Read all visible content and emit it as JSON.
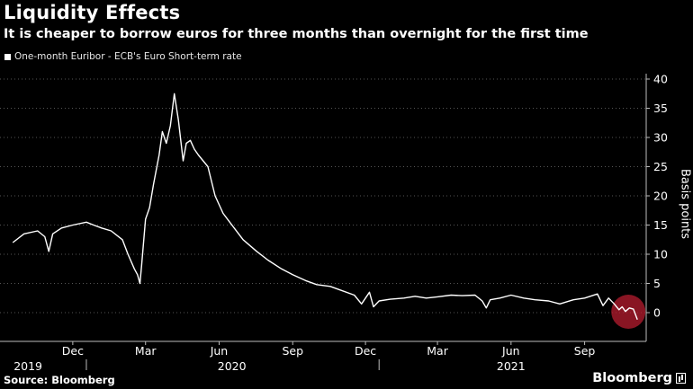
{
  "title": "Liquidity Effects",
  "subtitle": "It is cheaper to borrow euros for three months than overnight for the first time",
  "legend": {
    "label": "One-month Euribor - ECB's Euro Short-term rate",
    "swatch_color": "#ffffff"
  },
  "source": "Source: Bloomberg",
  "brand": "Bloomberg",
  "colors": {
    "background": "#000000",
    "line": "#ffffff",
    "grid": "#555555",
    "highlight": "#b71c2f"
  },
  "chart_data": {
    "type": "line",
    "ylabel": "Basis points",
    "ylim": [
      -5,
      41
    ],
    "yticks": [
      0,
      5,
      10,
      15,
      20,
      25,
      30,
      35,
      40
    ],
    "grid": true,
    "legend_position": "top-left",
    "x_month_labels": [
      "Dec",
      "Mar",
      "Jun",
      "Sep",
      "Dec",
      "Mar",
      "Jun",
      "Sep"
    ],
    "x_year_labels": [
      "2019",
      "2020",
      "2021"
    ],
    "annotation": "red circle highlighting the latest values below zero",
    "series": [
      {
        "values": [
          {
            "x": "2019-10-01",
            "y": 12.0
          },
          {
            "x": "2019-10-15",
            "y": 13.5
          },
          {
            "x": "2019-11-01",
            "y": 14.0
          },
          {
            "x": "2019-11-10",
            "y": 13.0
          },
          {
            "x": "2019-11-15",
            "y": 10.5
          },
          {
            "x": "2019-11-20",
            "y": 13.5
          },
          {
            "x": "2019-12-01",
            "y": 14.5
          },
          {
            "x": "2019-12-15",
            "y": 15.0
          },
          {
            "x": "2020-01-01",
            "y": 15.5
          },
          {
            "x": "2020-01-10",
            "y": 15.0
          },
          {
            "x": "2020-01-20",
            "y": 14.5
          },
          {
            "x": "2020-02-01",
            "y": 14.0
          },
          {
            "x": "2020-02-15",
            "y": 12.5
          },
          {
            "x": "2020-02-22",
            "y": 10.0
          },
          {
            "x": "2020-03-01",
            "y": 7.5
          },
          {
            "x": "2020-03-05",
            "y": 6.5
          },
          {
            "x": "2020-03-08",
            "y": 5.0
          },
          {
            "x": "2020-03-10",
            "y": 8.0
          },
          {
            "x": "2020-03-15",
            "y": 16.0
          },
          {
            "x": "2020-03-20",
            "y": 18.0
          },
          {
            "x": "2020-03-25",
            "y": 22.0
          },
          {
            "x": "2020-04-01",
            "y": 27.0
          },
          {
            "x": "2020-04-05",
            "y": 31.0
          },
          {
            "x": "2020-04-10",
            "y": 29.0
          },
          {
            "x": "2020-04-15",
            "y": 32.0
          },
          {
            "x": "2020-04-20",
            "y": 37.5
          },
          {
            "x": "2020-04-25",
            "y": 33.0
          },
          {
            "x": "2020-05-01",
            "y": 26.0
          },
          {
            "x": "2020-05-05",
            "y": 29.0
          },
          {
            "x": "2020-05-10",
            "y": 29.5
          },
          {
            "x": "2020-05-15",
            "y": 28.0
          },
          {
            "x": "2020-05-20",
            "y": 27.0
          },
          {
            "x": "2020-06-01",
            "y": 25.0
          },
          {
            "x": "2020-06-10",
            "y": 20.0
          },
          {
            "x": "2020-06-20",
            "y": 17.0
          },
          {
            "x": "2020-07-01",
            "y": 15.0
          },
          {
            "x": "2020-07-15",
            "y": 12.5
          },
          {
            "x": "2020-08-01",
            "y": 10.5
          },
          {
            "x": "2020-08-15",
            "y": 9.0
          },
          {
            "x": "2020-09-01",
            "y": 7.5
          },
          {
            "x": "2020-09-15",
            "y": 6.5
          },
          {
            "x": "2020-10-01",
            "y": 5.5
          },
          {
            "x": "2020-10-15",
            "y": 4.8
          },
          {
            "x": "2020-11-01",
            "y": 4.5
          },
          {
            "x": "2020-11-15",
            "y": 3.8
          },
          {
            "x": "2020-12-01",
            "y": 3.0
          },
          {
            "x": "2020-12-10",
            "y": 1.5
          },
          {
            "x": "2020-12-15",
            "y": 2.5
          },
          {
            "x": "2020-12-20",
            "y": 3.5
          },
          {
            "x": "2020-12-25",
            "y": 1.0
          },
          {
            "x": "2021-01-01",
            "y": 2.0
          },
          {
            "x": "2021-01-15",
            "y": 2.3
          },
          {
            "x": "2021-02-01",
            "y": 2.5
          },
          {
            "x": "2021-02-15",
            "y": 2.8
          },
          {
            "x": "2021-03-01",
            "y": 2.5
          },
          {
            "x": "2021-03-15",
            "y": 2.7
          },
          {
            "x": "2021-04-01",
            "y": 3.0
          },
          {
            "x": "2021-04-15",
            "y": 2.9
          },
          {
            "x": "2021-05-01",
            "y": 3.0
          },
          {
            "x": "2021-05-10",
            "y": 2.0
          },
          {
            "x": "2021-05-15",
            "y": 0.8
          },
          {
            "x": "2021-05-20",
            "y": 2.2
          },
          {
            "x": "2021-06-01",
            "y": 2.5
          },
          {
            "x": "2021-06-15",
            "y": 3.0
          },
          {
            "x": "2021-07-01",
            "y": 2.5
          },
          {
            "x": "2021-07-15",
            "y": 2.2
          },
          {
            "x": "2021-08-01",
            "y": 2.0
          },
          {
            "x": "2021-08-15",
            "y": 1.5
          },
          {
            "x": "2021-09-01",
            "y": 2.2
          },
          {
            "x": "2021-09-15",
            "y": 2.5
          },
          {
            "x": "2021-10-01",
            "y": 3.2
          },
          {
            "x": "2021-10-08",
            "y": 1.2
          },
          {
            "x": "2021-10-15",
            "y": 2.5
          },
          {
            "x": "2021-10-22",
            "y": 1.5
          },
          {
            "x": "2021-10-28",
            "y": 0.5
          },
          {
            "x": "2021-11-01",
            "y": 1.0
          },
          {
            "x": "2021-11-05",
            "y": 0.2
          },
          {
            "x": "2021-11-10",
            "y": 0.8
          },
          {
            "x": "2021-11-15",
            "y": 0.6
          },
          {
            "x": "2021-11-20",
            "y": -1.2
          }
        ]
      }
    ]
  }
}
